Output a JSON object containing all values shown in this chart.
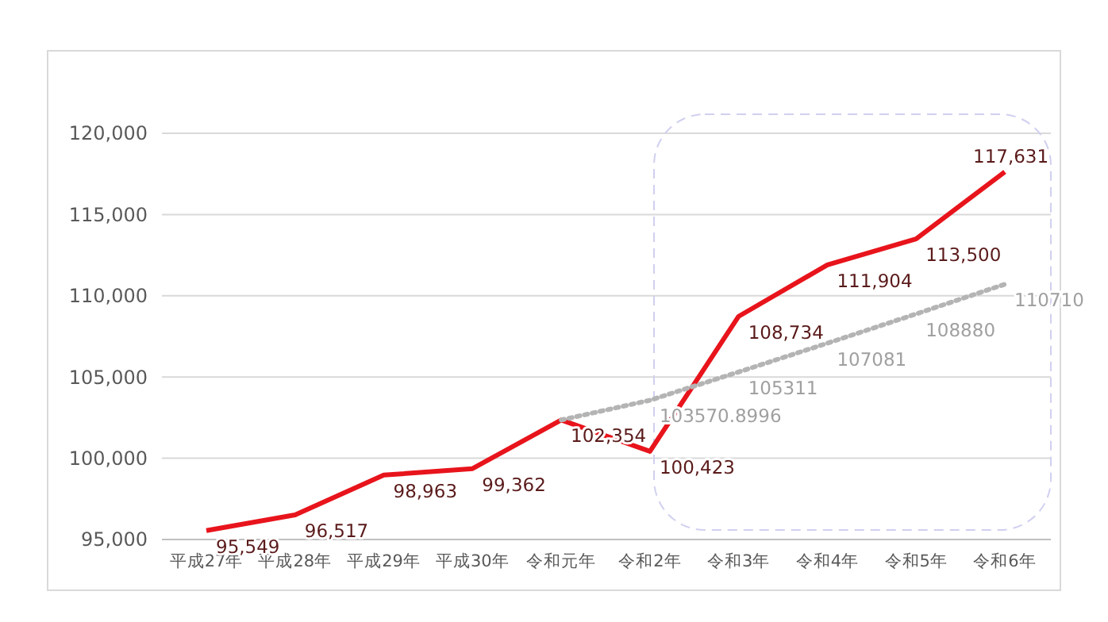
{
  "chart_data": {
    "type": "line",
    "categories": [
      "平成27年",
      "平成28年",
      "平成29年",
      "平成30年",
      "令和元年",
      "令和2年",
      "令和3年",
      "令和4年",
      "令和5年",
      "令和6年"
    ],
    "series": [
      {
        "color": "#e8141c",
        "line_style": "solid",
        "values": [
          95549,
          96517,
          98963,
          99362,
          102354,
          100423,
          108734,
          111904,
          113500,
          117631
        ],
        "value_labels": [
          "95,549",
          "96,517",
          "98,963",
          "99,362",
          "102,354",
          "100,423",
          "108,734",
          "111,904",
          "113,500",
          "117,631"
        ]
      },
      {
        "color": "#b4b4b4",
        "line_style": "dotted",
        "values": [
          null,
          null,
          null,
          null,
          102354,
          103570.8996,
          105311,
          107081,
          108880,
          110710
        ],
        "value_labels": [
          null,
          null,
          null,
          null,
          null,
          "103570.8996",
          "105311",
          "107081",
          "108880",
          "110710"
        ]
      }
    ],
    "ylim": [
      95000,
      120000
    ],
    "yticks": [
      {
        "value": 95000,
        "label": "95,000"
      },
      {
        "value": 100000,
        "label": "100,000"
      },
      {
        "value": 105000,
        "label": "105,000"
      },
      {
        "value": 110000,
        "label": "110,000"
      },
      {
        "value": 115000,
        "label": "115,000"
      },
      {
        "value": 120000,
        "label": "120,000"
      }
    ],
    "grid": "y",
    "marker": "none"
  }
}
